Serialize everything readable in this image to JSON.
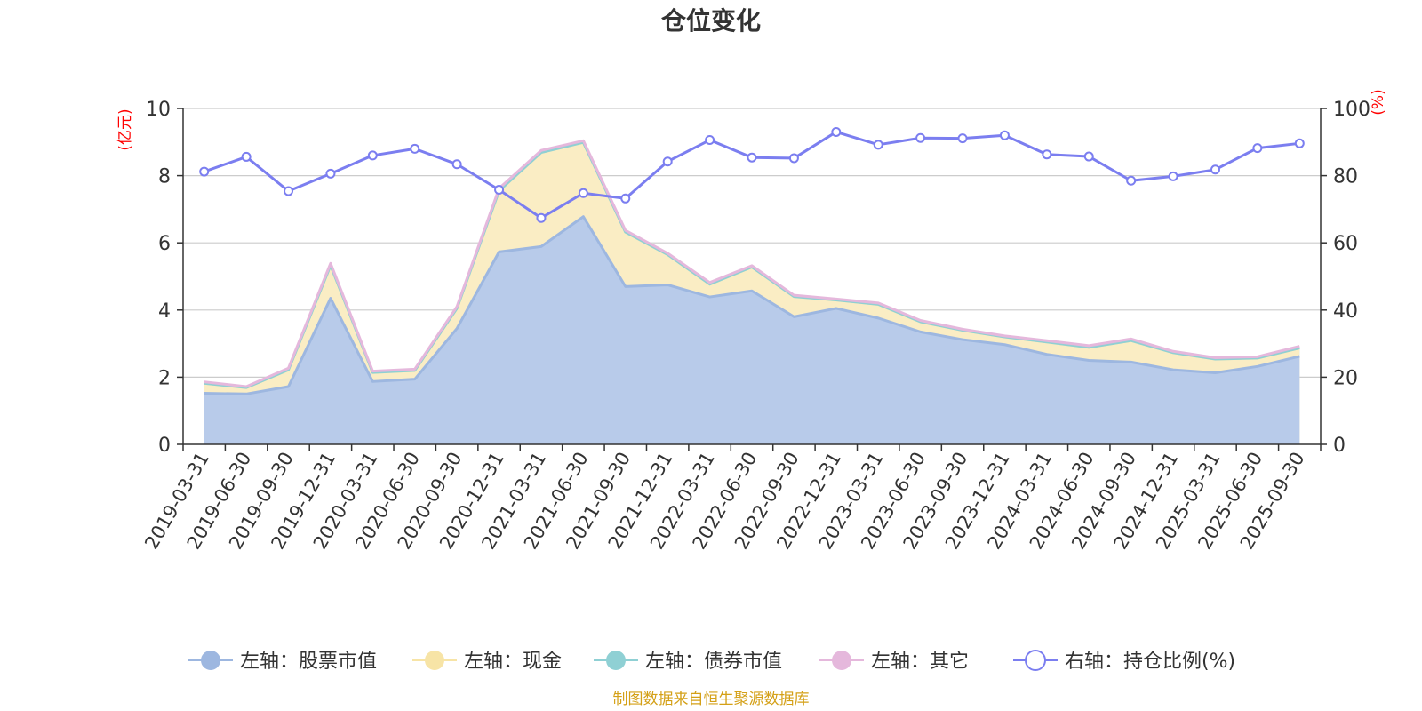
{
  "chart_data": {
    "type": "area",
    "title": "仓位变化",
    "left_axis_unit": "(亿元)",
    "right_axis_unit": "(%)",
    "left_ylim": [
      0,
      10
    ],
    "right_ylim": [
      0,
      100
    ],
    "left_ticks": [
      "0",
      "2",
      "4",
      "6",
      "8",
      "10"
    ],
    "right_ticks": [
      "0",
      "20",
      "40",
      "60",
      "80",
      "100"
    ],
    "categories": [
      "2019-03-31",
      "2019-06-30",
      "2019-09-30",
      "2019-12-31",
      "2020-03-31",
      "2020-06-30",
      "2020-09-30",
      "2020-12-31",
      "2021-03-31",
      "2021-06-30",
      "2021-09-30",
      "2021-12-31",
      "2022-03-31",
      "2022-06-30",
      "2022-09-30",
      "2022-12-31",
      "2023-03-31",
      "2023-06-30",
      "2023-09-30",
      "2023-12-31",
      "2024-03-31",
      "2024-06-30",
      "2024-09-30",
      "2024-12-31",
      "2025-03-31",
      "2025-06-30",
      "2025-09-30"
    ],
    "series": [
      {
        "name": "左轴：股票市值",
        "axis": "left",
        "stack": true,
        "color": "#9db7e0",
        "fill": "#b8cbea",
        "values": [
          1.52,
          1.5,
          1.72,
          4.35,
          1.87,
          1.94,
          3.45,
          5.73,
          5.89,
          6.78,
          4.7,
          4.75,
          4.39,
          4.57,
          3.8,
          4.05,
          3.76,
          3.35,
          3.12,
          2.97,
          2.68,
          2.5,
          2.45,
          2.22,
          2.13,
          2.32,
          2.62
        ]
      },
      {
        "name": "左轴：现金",
        "axis": "left",
        "stack": true,
        "color": "#f7e4a6",
        "fill": "#faedc4",
        "values": [
          0.3,
          0.19,
          0.5,
          0.98,
          0.27,
          0.26,
          0.6,
          1.82,
          2.8,
          2.21,
          1.62,
          0.9,
          0.38,
          0.71,
          0.6,
          0.25,
          0.41,
          0.3,
          0.28,
          0.23,
          0.37,
          0.39,
          0.64,
          0.51,
          0.41,
          0.25,
          0.25
        ]
      },
      {
        "name": "左轴：债券市值",
        "axis": "left",
        "stack": true,
        "color": "#8fd0d4",
        "fill": "#bde3e6",
        "values": [
          0,
          0,
          0,
          0,
          0,
          0,
          0,
          0,
          0,
          0,
          0,
          0,
          0,
          0,
          0,
          0,
          0,
          0,
          0,
          0,
          0,
          0,
          0,
          0,
          0,
          0,
          0
        ]
      },
      {
        "name": "左轴：其它",
        "axis": "left",
        "stack": true,
        "color": "#e5b8dc",
        "fill": "#f0d3ea",
        "values": [
          0.04,
          0.03,
          0.05,
          0.06,
          0.04,
          0.04,
          0.05,
          0.07,
          0.06,
          0.05,
          0.05,
          0.04,
          0.05,
          0.04,
          0.04,
          0.03,
          0.04,
          0.04,
          0.03,
          0.03,
          0.04,
          0.05,
          0.05,
          0.04,
          0.04,
          0.04,
          0.05
        ]
      },
      {
        "name": "右轴：持仓比例(%)",
        "axis": "right",
        "stack": false,
        "color": "#7b7ef0",
        "values": [
          81.2,
          85.6,
          75.4,
          80.6,
          86.0,
          88.0,
          83.4,
          75.8,
          67.4,
          74.8,
          73.2,
          84.2,
          90.6,
          85.4,
          85.2,
          93.0,
          89.2,
          91.2,
          91.1,
          92.0,
          86.3,
          85.7,
          78.5,
          79.8,
          81.8,
          88.2,
          89.6
        ]
      }
    ],
    "legend_position": "bottom",
    "source_note": "制图数据来自恒生聚源数据库"
  }
}
